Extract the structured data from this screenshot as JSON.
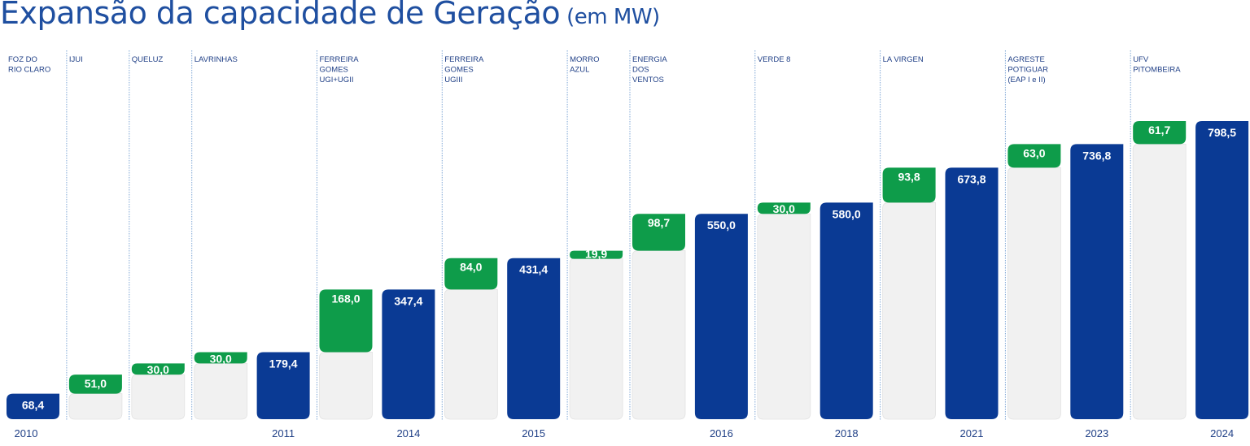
{
  "title": "Expansão da capacidade de Geração",
  "subtitle": "(em MW)",
  "colors": {
    "total": "#0a3a94",
    "addition": "#0e9c4a",
    "ghost": "#f1f1f1",
    "divider": "#7fa7d6",
    "label": "#1f3f86"
  },
  "chart_data": {
    "type": "bar",
    "subtype": "waterfall",
    "ylim": [
      0,
      800
    ],
    "columns": [
      {
        "kind": "total",
        "value": 68.4,
        "label": "68,4",
        "project": "FOZ DO\nRIO CLARO",
        "year": "2010"
      },
      {
        "kind": "add",
        "value": 51.0,
        "label": "51,0",
        "project": "IJUI",
        "year": ""
      },
      {
        "kind": "add",
        "value": 30.0,
        "label": "30,0",
        "project": "QUELUZ",
        "year": ""
      },
      {
        "kind": "add",
        "value": 30.0,
        "label": "30,0",
        "project": "LAVRINHAS",
        "year": ""
      },
      {
        "kind": "total",
        "value": 179.4,
        "label": "179,4",
        "project": "",
        "year": "2011"
      },
      {
        "kind": "add",
        "value": 168.0,
        "label": "168,0",
        "project": "FERREIRA\nGOMES\nUGI+UGII",
        "year": ""
      },
      {
        "kind": "total",
        "value": 347.4,
        "label": "347,4",
        "project": "",
        "year": "2014"
      },
      {
        "kind": "add",
        "value": 84.0,
        "label": "84,0",
        "project": "FERREIRA\nGOMES\nUGIII",
        "year": ""
      },
      {
        "kind": "total",
        "value": 431.4,
        "label": "431,4",
        "project": "",
        "year": "2015"
      },
      {
        "kind": "add",
        "value": 19.9,
        "label": "19,9",
        "project": "MORRO\nAZUL",
        "year": ""
      },
      {
        "kind": "add",
        "value": 98.7,
        "label": "98,7",
        "project": "ENERGIA\nDOS\nVENTOS",
        "year": ""
      },
      {
        "kind": "total",
        "value": 550.0,
        "label": "550,0",
        "project": "",
        "year": "2016"
      },
      {
        "kind": "add",
        "value": 30.0,
        "label": "30,0",
        "project": "VERDE 8",
        "year": ""
      },
      {
        "kind": "total",
        "value": 580.0,
        "label": "580,0",
        "project": "",
        "year": "2018"
      },
      {
        "kind": "add",
        "value": 93.8,
        "label": "93,8",
        "project": "LA VIRGEN",
        "year": ""
      },
      {
        "kind": "total",
        "value": 673.8,
        "label": "673,8",
        "project": "",
        "year": "2021"
      },
      {
        "kind": "add",
        "value": 63.0,
        "label": "63,0",
        "project": "AGRESTE\nPOTIGUAR\n(EAP I e II)",
        "year": ""
      },
      {
        "kind": "total",
        "value": 736.8,
        "label": "736,8",
        "project": "",
        "year": "2023"
      },
      {
        "kind": "add",
        "value": 61.7,
        "label": "61,7",
        "project": "UFV\nPITOMBEIRA",
        "year": ""
      },
      {
        "kind": "total",
        "value": 798.5,
        "label": "798,5",
        "project": "",
        "year": "2024"
      }
    ]
  }
}
